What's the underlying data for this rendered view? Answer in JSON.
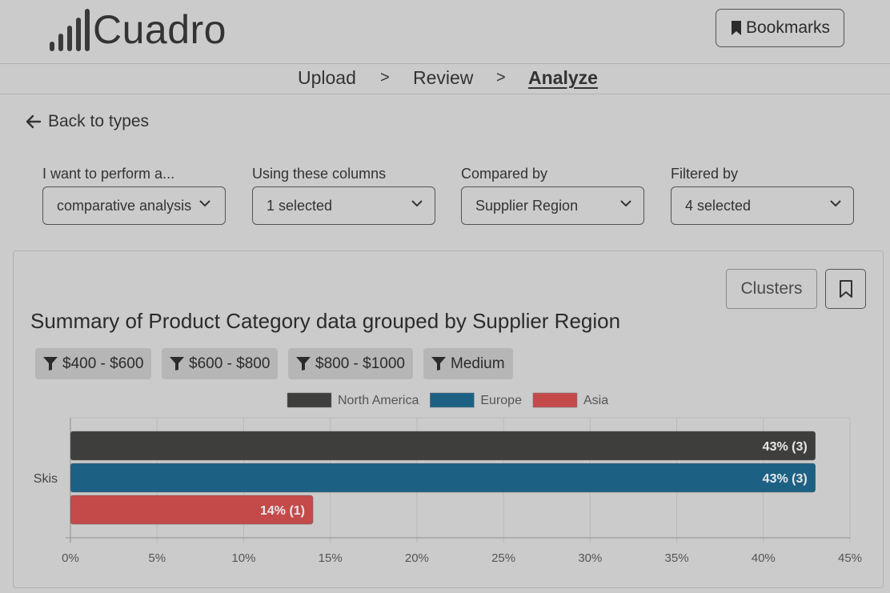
{
  "app": {
    "name": "Cuadro",
    "bookmarks_label": "Bookmarks"
  },
  "nav": {
    "steps": [
      {
        "label": "Upload"
      },
      {
        "label": "Review"
      },
      {
        "label": "Analyze"
      }
    ],
    "separator": ">"
  },
  "back": {
    "label": "Back to types"
  },
  "controls": [
    {
      "label": "I want to perform a...",
      "value": "comparative analysis"
    },
    {
      "label": "Using these columns",
      "value": "1 selected"
    },
    {
      "label": "Compared by",
      "value": "Supplier Region"
    },
    {
      "label": "Filtered by",
      "value": "4 selected"
    }
  ],
  "panel": {
    "clusters_label": "Clusters",
    "title": "Summary of Product Category data grouped by Supplier Region",
    "filters": [
      "$400 - $600",
      "$600 - $800",
      "$800 - $1000",
      "Medium"
    ]
  },
  "colors": {
    "north_america": "#3e3e3d",
    "europe": "#1c6184",
    "asia": "#c44a4a"
  },
  "chart_data": {
    "type": "bar",
    "orientation": "horizontal",
    "categories": [
      "Skis"
    ],
    "series": [
      {
        "name": "North America",
        "values": [
          43
        ],
        "labels": [
          "43% (3)"
        ],
        "color": "#3e3e3d"
      },
      {
        "name": "Europe",
        "values": [
          43
        ],
        "labels": [
          "43% (3)"
        ],
        "color": "#1c6184"
      },
      {
        "name": "Asia",
        "values": [
          14
        ],
        "labels": [
          "14% (1)"
        ],
        "color": "#c44a4a"
      }
    ],
    "xlim": [
      0,
      45
    ],
    "xticks": [
      "0%",
      "5%",
      "10%",
      "15%",
      "20%",
      "25%",
      "30%",
      "35%",
      "40%",
      "45%"
    ],
    "grid": true,
    "legend_position": "top-center"
  }
}
